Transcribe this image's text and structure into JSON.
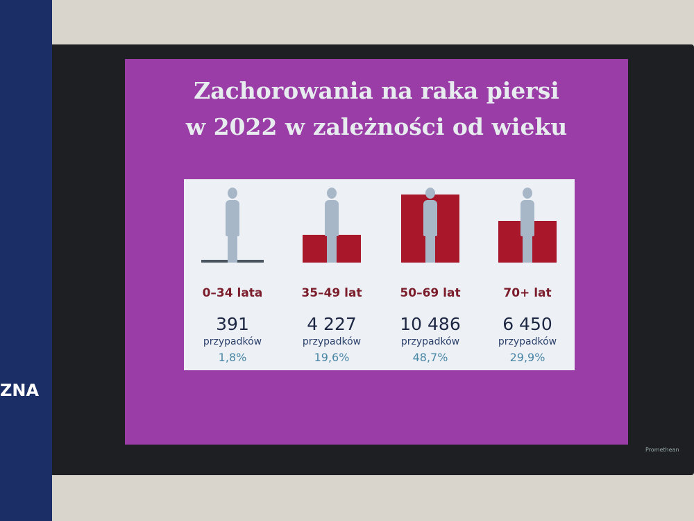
{
  "chart_data": {
    "type": "bar",
    "title_lines": [
      "Zachorowania na raka piersi",
      "w 2022 w zależności od wieku"
    ],
    "categories": [
      "0–34 lata",
      "35–49 lat",
      "50–69 lat",
      "70+ lat"
    ],
    "values": [
      391,
      4227,
      10486,
      6450
    ],
    "value_labels": [
      "391",
      "4 227",
      "10 486",
      "6 450"
    ],
    "unit_label": "przypadków",
    "shares": [
      1.8,
      19.6,
      48.7,
      29.9
    ],
    "share_labels": [
      "1,8%",
      "19,6%",
      "48,7%",
      "29,9%"
    ],
    "color": "#a8182a"
  },
  "banner_text": "ZNA",
  "brand": "Promethean"
}
